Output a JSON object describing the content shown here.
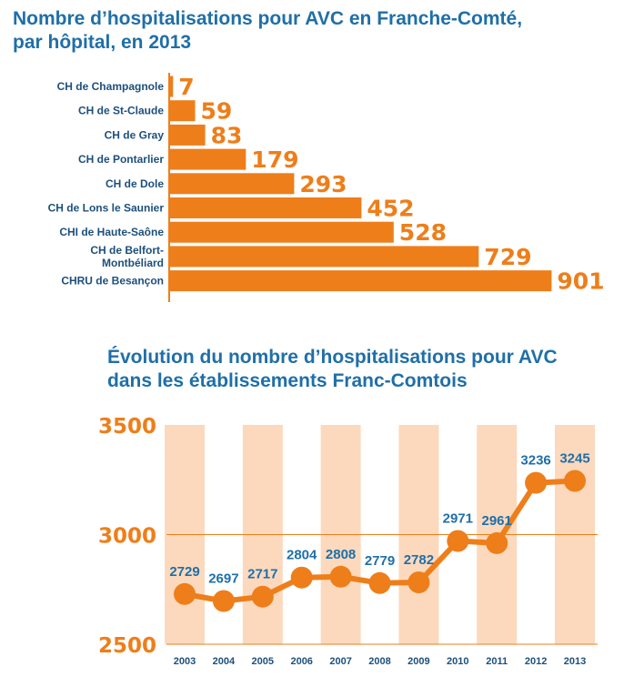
{
  "titles": {
    "bar_line1": "Nombre d’hospitalisations pour AVC en Franche-Comté,",
    "bar_line2": "par hôpital, en 2013",
    "line_line1": "Évolution du nombre d’hospitalisations pour AVC",
    "line_line2": "dans les établissements Franc-Comtois"
  },
  "colors": {
    "orange": "#ee7e1a",
    "band": "#fcd9bd",
    "blue": "#1f6fa8",
    "label_blue": "#1d4f7c"
  },
  "chart_data": [
    {
      "type": "bar",
      "orientation": "horizontal",
      "title": "Nombre d’hospitalisations pour AVC en Franche-Comté, par hôpital, en 2013",
      "categories": [
        [
          "CH de Champagnole"
        ],
        [
          "CH de St-Claude"
        ],
        [
          "CH de Gray"
        ],
        [
          "CH de Pontarlier"
        ],
        [
          "CH de Dole"
        ],
        [
          "CH de Lons le Saunier"
        ],
        [
          "CHI de Haute-Saône"
        ],
        [
          "CH de Belfort-",
          "Montbéliard"
        ],
        [
          "CHRU de Besançon"
        ]
      ],
      "values": [
        7,
        59,
        83,
        179,
        293,
        452,
        528,
        729,
        901
      ]
    },
    {
      "type": "line",
      "title": "Évolution du nombre d’hospitalisations pour AVC dans les établissements Franc-Comtois",
      "x": [
        "2003",
        "2004",
        "2005",
        "2006",
        "2007",
        "2008",
        "2009",
        "2010",
        "2011",
        "2012",
        "2013"
      ],
      "values": [
        2729,
        2697,
        2717,
        2804,
        2808,
        2779,
        2782,
        2971,
        2961,
        3236,
        3245
      ],
      "ylim": [
        2500,
        3500
      ],
      "yticks": [
        2500,
        3000,
        3500
      ],
      "grid": "single horizontal line at 3000",
      "background": "alternating vertical shaded bands"
    }
  ]
}
